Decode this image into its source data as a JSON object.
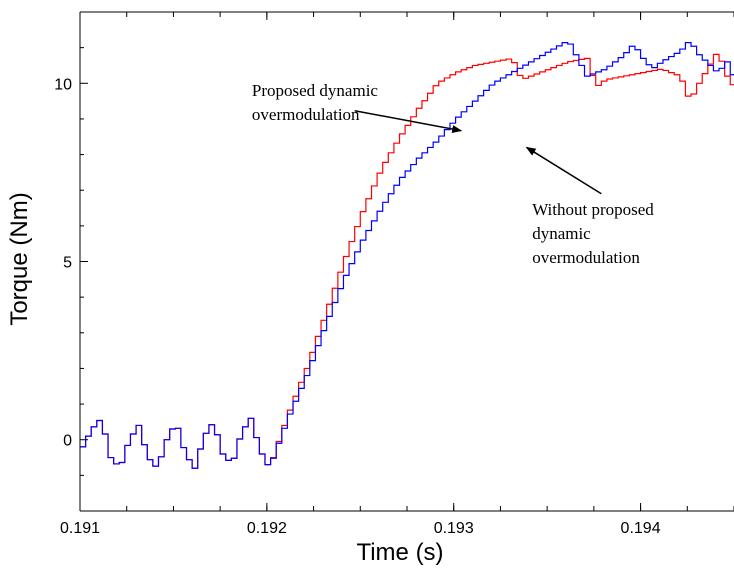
{
  "chart_data": {
    "type": "line",
    "title": "",
    "xlabel": "Time (s)",
    "ylabel": "Torque (Nm)",
    "xlim": [
      0.191,
      0.1945
    ],
    "ylim": [
      -2,
      12
    ],
    "xticks": [
      0.191,
      0.192,
      0.193,
      0.194
    ],
    "xtick_labels": [
      "0.191",
      "0.192",
      "0.193",
      "0.194"
    ],
    "yticks": [
      0,
      5,
      10
    ],
    "ytick_labels": [
      "0",
      "5",
      "10"
    ],
    "grid": false,
    "legend": "none",
    "step_size": 3e-05,
    "series": [
      {
        "color": "#ff0000",
        "x": [
          0.191,
          0.19105,
          0.1911,
          0.19115,
          0.1912,
          0.19125,
          0.1913,
          0.19135,
          0.1914,
          0.19145,
          0.1915,
          0.19155,
          0.1916,
          0.19165,
          0.1917,
          0.19175,
          0.1918,
          0.19185,
          0.1919,
          0.19195,
          0.192,
          0.1921,
          0.1922,
          0.1923,
          0.1924,
          0.1925,
          0.1926,
          0.1927,
          0.1928,
          0.1929,
          0.193,
          0.1931,
          0.1932,
          0.1933,
          0.19335,
          0.1934,
          0.19345,
          0.1935,
          0.1936,
          0.1937,
          0.19375,
          0.1938,
          0.1939,
          0.194,
          0.1941,
          0.1942,
          0.19425,
          0.1943,
          0.1944,
          0.19445,
          0.1945
        ],
        "y": [
          -0.2,
          0.3,
          0.6,
          -0.5,
          -0.8,
          0.0,
          0.4,
          -0.5,
          -0.8,
          0.0,
          0.5,
          -0.4,
          -0.8,
          0.1,
          0.5,
          -0.4,
          -0.7,
          0.2,
          0.6,
          -0.3,
          -0.8,
          0.7,
          2.0,
          3.5,
          5.0,
          6.4,
          7.6,
          8.5,
          9.3,
          10.0,
          10.3,
          10.5,
          10.6,
          10.7,
          10.1,
          10.2,
          10.3,
          10.4,
          10.6,
          10.7,
          9.9,
          10.1,
          10.2,
          10.3,
          10.4,
          10.2,
          9.5,
          10.0,
          10.9,
          10.2,
          9.8
        ]
      },
      {
        "color": "#0000ff",
        "x": [
          0.191,
          0.19105,
          0.1911,
          0.19115,
          0.1912,
          0.19125,
          0.1913,
          0.19135,
          0.1914,
          0.19145,
          0.1915,
          0.19155,
          0.1916,
          0.19165,
          0.1917,
          0.19175,
          0.1918,
          0.19185,
          0.1919,
          0.19195,
          0.192,
          0.1921,
          0.1922,
          0.1923,
          0.1924,
          0.1925,
          0.1926,
          0.1927,
          0.1928,
          0.1929,
          0.193,
          0.1931,
          0.1932,
          0.1933,
          0.1934,
          0.1935,
          0.1936,
          0.1937,
          0.1938,
          0.1939,
          0.19395,
          0.194,
          0.19405,
          0.1941,
          0.1942,
          0.19425,
          0.1943,
          0.1944,
          0.19445,
          0.1945
        ],
        "y": [
          -0.2,
          0.3,
          0.6,
          -0.5,
          -0.8,
          0.0,
          0.4,
          -0.5,
          -0.8,
          0.0,
          0.5,
          -0.4,
          -0.8,
          0.1,
          0.5,
          -0.4,
          -0.7,
          0.2,
          0.6,
          -0.3,
          -0.8,
          0.6,
          1.8,
          3.2,
          4.5,
          5.6,
          6.5,
          7.3,
          7.9,
          8.4,
          9.0,
          9.5,
          10.0,
          10.3,
          10.6,
          10.9,
          11.2,
          10.2,
          10.4,
          10.8,
          11.1,
          10.7,
          10.4,
          10.6,
          10.9,
          11.2,
          10.8,
          10.3,
          10.6,
          10.0
        ]
      }
    ],
    "annotations": [
      {
        "lines": [
          "Proposed dynamic",
          "overmodulation"
        ],
        "text_x": 0.19192,
        "text_y": 9.65,
        "arrow_from": [
          0.19247,
          9.23
        ],
        "arrow_to": [
          0.19304,
          8.67
        ]
      },
      {
        "lines": [
          "Without proposed",
          "dynamic",
          "overmodulation"
        ],
        "text_x": 0.19342,
        "text_y": 6.3,
        "arrow_from": [
          0.19379,
          6.9
        ],
        "arrow_to": [
          0.19339,
          8.2
        ]
      }
    ]
  }
}
